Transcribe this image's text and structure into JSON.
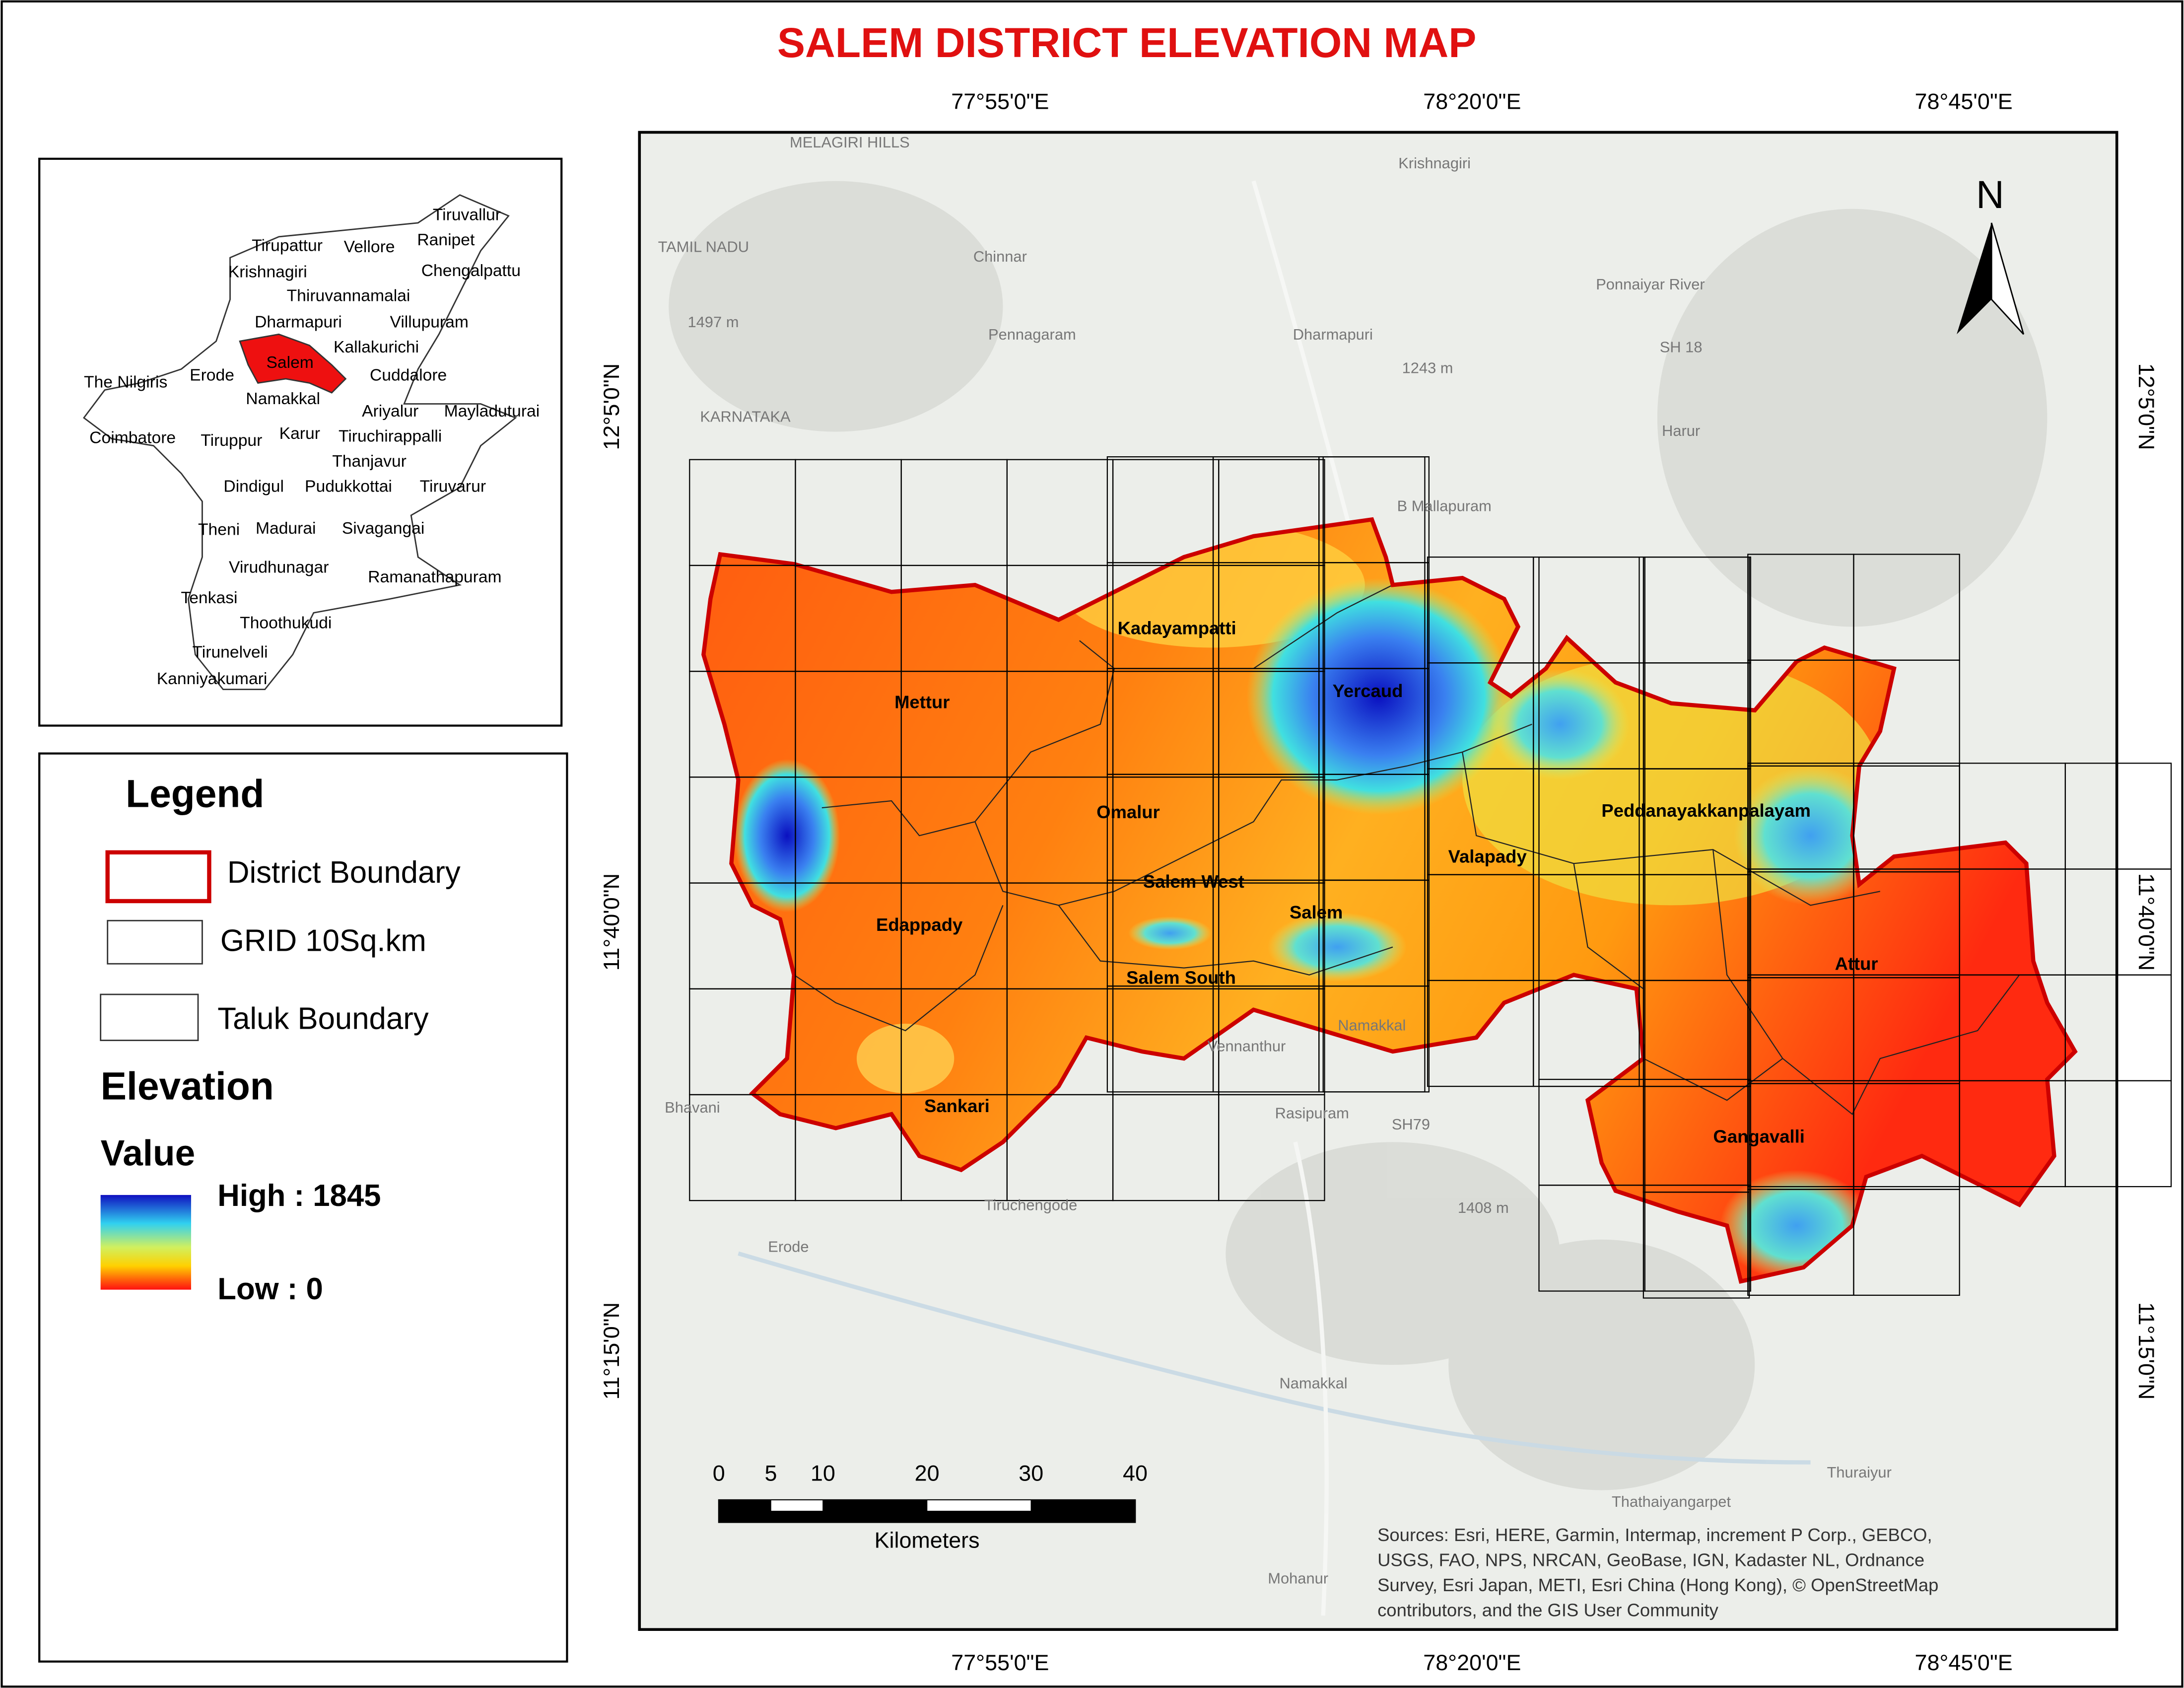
{
  "title": "SALEM DISTRICT ELEVATION  MAP",
  "coordinates": {
    "top": [
      "77°55'0\"E",
      "78°20'0\"E",
      "78°45'0\"E"
    ],
    "bottom": [
      "77°55'0\"E",
      "78°20'0\"E",
      "78°45'0\"E"
    ],
    "left": [
      "12°5'0\"N",
      "11°40'0\"N",
      "11°15'0\"N"
    ],
    "right": [
      "12°5'0\"N",
      "11°40'0\"N",
      "11°15'0\"N"
    ]
  },
  "inset_map": {
    "labels": [
      "Tiruvallur",
      "Tirupattur",
      "Vellore",
      "Ranipet",
      "Krishnagiri",
      "Chengalpattu",
      "Thiruvannamalai",
      "Dharmapuri",
      "Villupuram",
      "Kallakurichi",
      "Salem",
      "Erode",
      "The Nilgiris",
      "Cuddalore",
      "Namakkal",
      "Ariyalur",
      "Mayladuturai",
      "Coimbatore",
      "Tiruppur",
      "Karur",
      "Tiruchirappalli",
      "Thanjavur",
      "Dindigul",
      "Pudukkottai",
      "Tiruvarur",
      "Theni",
      "Madurai",
      "Sivagangai",
      "Virudhunagar",
      "Ramanathapuram",
      "Tenkasi",
      "Thoothukudi",
      "Tirunelveli",
      "Kanniyakumari"
    ]
  },
  "legend": {
    "title": "Legend",
    "items": [
      "District Boundary",
      "GRID 10Sq.km",
      "Taluk Boundary"
    ],
    "elevation_title": "Elevation",
    "value_title": "Value",
    "high": "High : 1845",
    "low": "Low : 0"
  },
  "map": {
    "taluks": [
      "Kadayampatti",
      "Mettur",
      "Yercaud",
      "Omalur",
      "Peddanayakkanpalayam",
      "Valapady",
      "Salem West",
      "Salem",
      "Edappady",
      "Attur",
      "Salem South",
      "Sankari",
      "Gangavalli"
    ],
    "places": [
      "MELAGIRI HILLS",
      "Krishnagiri",
      "TAMIL NADU",
      "Chinnar",
      "Ponnaiyar River",
      "1497 m",
      "Pennagaram",
      "Dharmapuri",
      "1243 m",
      "SH 18",
      "Harur",
      "KARNATAKA",
      "B Mallapuram",
      "Vennanthur",
      "Namakkal",
      "Rasipuram",
      "SH79",
      "Tiruchengode",
      "Erode",
      "1408 m",
      "Namakkal",
      "Thuraiyur",
      "Thathaiyangarpet",
      "Mohanur",
      "Bhavani"
    ]
  },
  "north_arrow": "N",
  "scale_bar": {
    "ticks": [
      0,
      5,
      10,
      20,
      30,
      40
    ],
    "unit": "Kilometers"
  },
  "sources": [
    "Sources: Esri, HERE, Garmin, Intermap, increment P Corp., GEBCO,",
    "USGS, FAO, NPS, NRCAN, GeoBase, IGN, Kadaster NL, Ordnance",
    "Survey, Esri Japan, METI, Esri China (Hong Kong), © OpenStreetMap",
    "contributors, and the GIS User Community"
  ]
}
